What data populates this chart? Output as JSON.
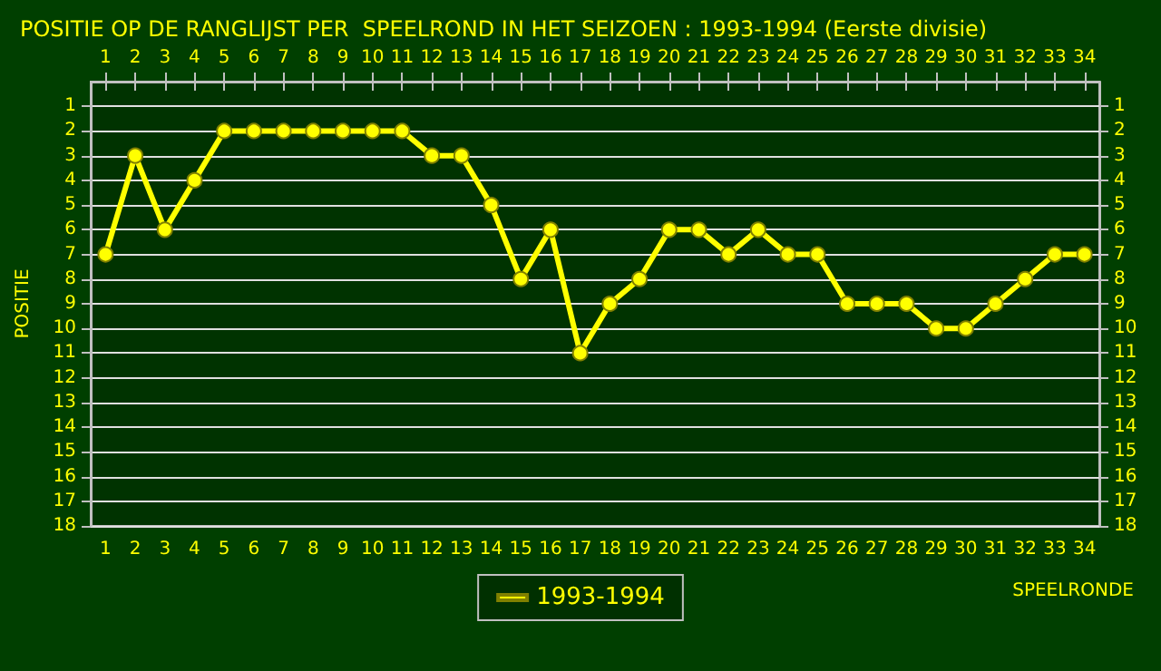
{
  "chart_data": {
    "type": "line",
    "title": "POSITIE OP DE RANGLIJST PER  SPEELROND IN HET SEIZOEN : 1993-1994 (Eerste divisie)",
    "xlabel": "SPEELRONDE",
    "ylabel": "POSITIE",
    "xlim": [
      0.5,
      34.5
    ],
    "xticks": [
      1,
      2,
      3,
      4,
      5,
      6,
      7,
      8,
      9,
      10,
      11,
      12,
      13,
      14,
      15,
      16,
      17,
      18,
      19,
      20,
      21,
      22,
      23,
      24,
      25,
      26,
      27,
      28,
      29,
      30,
      31,
      32,
      33,
      34
    ],
    "x2lim": [
      0.5,
      34.5
    ],
    "x2ticks": [
      1,
      2,
      3,
      4,
      5,
      6,
      7,
      8,
      9,
      10,
      11,
      12,
      13,
      14,
      15,
      16,
      17,
      18,
      19,
      20,
      21,
      22,
      23,
      24,
      25,
      26,
      27,
      28,
      29,
      30,
      31,
      32,
      33,
      34
    ],
    "ylim": [
      18,
      0
    ],
    "yticks": [
      1,
      2,
      3,
      4,
      5,
      6,
      7,
      8,
      9,
      10,
      11,
      12,
      13,
      14,
      15,
      16,
      17,
      18
    ],
    "y2lim": [
      18,
      0
    ],
    "y2ticks": [
      1,
      2,
      3,
      4,
      5,
      6,
      7,
      8,
      9,
      10,
      11,
      12,
      13,
      14,
      15,
      16,
      17,
      18
    ],
    "grid": "y",
    "legend": "bottom",
    "marker": "circle",
    "line_style": "solid",
    "series": [
      {
        "name": "1993-1994",
        "color": "#ffff00",
        "x": [
          1,
          2,
          3,
          4,
          5,
          6,
          7,
          8,
          9,
          10,
          11,
          12,
          13,
          14,
          15,
          16,
          17,
          18,
          19,
          20,
          21,
          22,
          23,
          24,
          25,
          26,
          27,
          28,
          29,
          30,
          31,
          32,
          33,
          34
        ],
        "values": [
          7,
          3,
          6,
          4,
          2,
          2,
          2,
          2,
          2,
          2,
          2,
          3,
          3,
          5,
          8,
          6,
          11,
          9,
          8,
          6,
          6,
          7,
          6,
          7,
          7,
          9,
          9,
          9,
          10,
          10,
          9,
          8,
          7,
          7
        ]
      }
    ]
  }
}
